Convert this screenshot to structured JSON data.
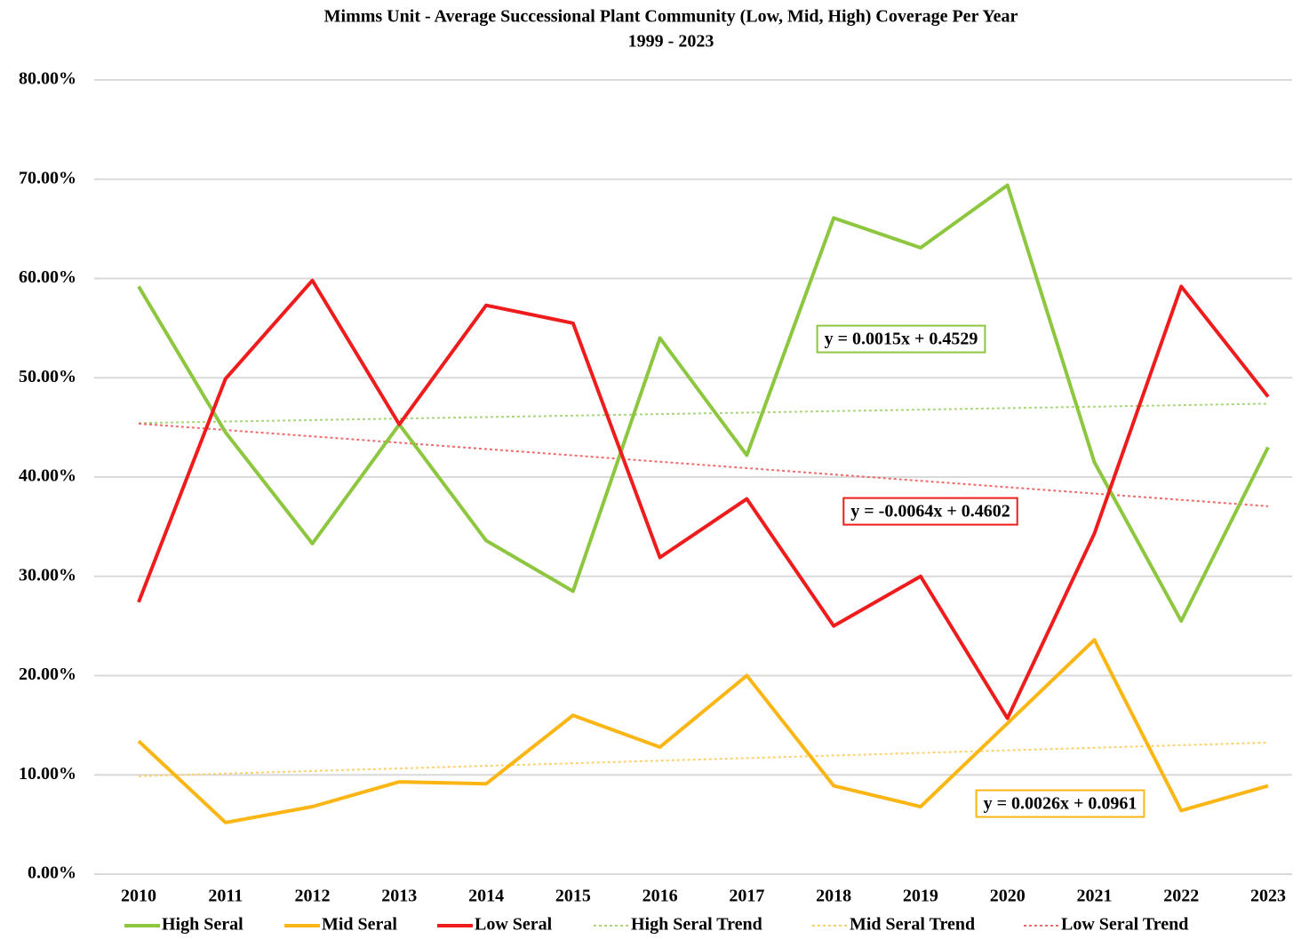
{
  "chart_data": {
    "type": "line",
    "title": "Mimms Unit - Average Successional Plant Community (Low, Mid, High) Coverage Per Year",
    "subtitle": "1999 - 2023",
    "categories": [
      "2010",
      "2011",
      "2012",
      "2013",
      "2014",
      "2015",
      "2016",
      "2017",
      "2018",
      "2019",
      "2020",
      "2021",
      "2022",
      "2023"
    ],
    "series": [
      {
        "name": "High Seral",
        "color": "#8dc63f",
        "dashed": false,
        "values": [
          59.2,
          44.5,
          33.3,
          45.3,
          33.6,
          28.5,
          54.0,
          42.2,
          66.1,
          63.1,
          69.4,
          41.5,
          25.5,
          43.0
        ]
      },
      {
        "name": "Mid Seral",
        "color": "#fbb615",
        "dashed": false,
        "values": [
          13.4,
          5.2,
          6.8,
          9.3,
          9.1,
          16.0,
          12.8,
          20.0,
          8.9,
          6.8,
          15.2,
          23.6,
          6.4,
          8.9
        ]
      },
      {
        "name": "Low Seral",
        "color": "#ee1c1c",
        "dashed": false,
        "values": [
          27.4,
          49.9,
          59.8,
          45.3,
          57.3,
          55.5,
          31.9,
          37.8,
          25.0,
          30.0,
          15.7,
          34.3,
          59.2,
          48.1
        ]
      },
      {
        "name": "High Seral Trend",
        "color": "#a9d67a",
        "dashed": true,
        "values": [
          45.44,
          45.59,
          45.74,
          45.89,
          46.04,
          46.19,
          46.34,
          46.49,
          46.64,
          46.79,
          46.94,
          47.09,
          47.24,
          47.39
        ]
      },
      {
        "name": "Mid Seral Trend",
        "color": "#fcd06a",
        "dashed": true,
        "values": [
          9.87,
          10.13,
          10.39,
          10.65,
          10.91,
          11.17,
          11.43,
          11.69,
          11.95,
          12.21,
          12.47,
          12.73,
          12.99,
          13.25
        ]
      },
      {
        "name": "Low Seral Trend",
        "color": "#f06a6a",
        "dashed": true,
        "values": [
          45.38,
          44.74,
          44.1,
          43.46,
          42.82,
          42.18,
          41.54,
          40.9,
          40.26,
          39.62,
          38.98,
          38.34,
          37.7,
          37.06
        ]
      }
    ],
    "annotations": [
      {
        "text": "y = 0.0015x + 0.4529",
        "color": "#8dc63f"
      },
      {
        "text": "y = -0.0064x + 0.4602",
        "color": "#ee1c1c"
      },
      {
        "text": "y = 0.0026x + 0.0961",
        "color": "#fbb615"
      }
    ],
    "ylim": [
      0,
      80
    ],
    "yticks": [
      {
        "value": 0,
        "label": "0.00%"
      },
      {
        "value": 10,
        "label": "10.00%"
      },
      {
        "value": 20,
        "label": "20.00%"
      },
      {
        "value": 30,
        "label": "30.00%"
      },
      {
        "value": 40,
        "label": "40.00%"
      },
      {
        "value": 50,
        "label": "50.00%"
      },
      {
        "value": 60,
        "label": "60.00%"
      },
      {
        "value": 70,
        "label": "70.00%"
      },
      {
        "value": 80,
        "label": "80.00%"
      }
    ],
    "grid": true
  }
}
